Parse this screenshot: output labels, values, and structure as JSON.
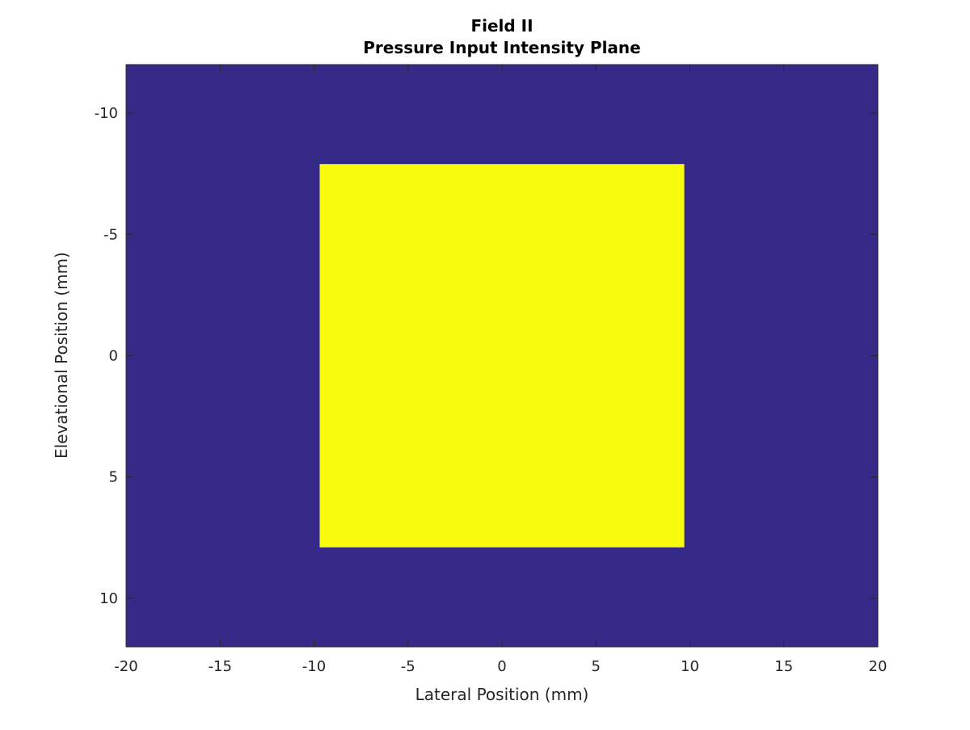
{
  "chart_data": {
    "type": "heatmap",
    "title": "Field II",
    "subtitle": "Pressure Input Intensity Plane",
    "xlabel": "Lateral Position (mm)",
    "ylabel": "Elevational Position (mm)",
    "xlim": [
      -20,
      20
    ],
    "ylim": [
      -12,
      12
    ],
    "y_reversed": true,
    "xticks": [
      -20,
      -15,
      -10,
      -5,
      0,
      5,
      10,
      15,
      20
    ],
    "yticks": [
      -10,
      -5,
      0,
      5,
      10
    ],
    "background_value": 0,
    "background_color": "#352a87",
    "regions": [
      {
        "value": 1,
        "x": [
          -9.7,
          9.7
        ],
        "y": [
          -7.9,
          7.9
        ],
        "color": "#f9fb0e"
      }
    ],
    "grid": false,
    "box": true
  }
}
